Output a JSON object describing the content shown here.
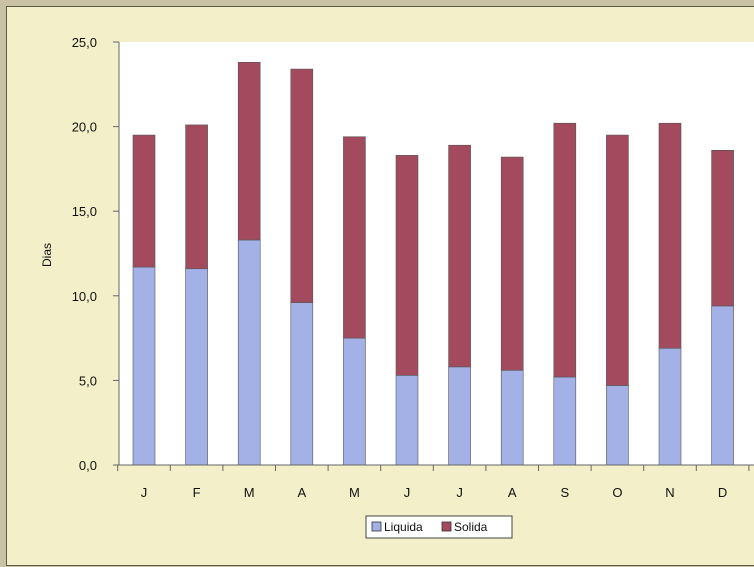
{
  "chart_data": {
    "type": "bar",
    "stacked": true,
    "categories": [
      "J",
      "F",
      "M",
      "A",
      "M",
      "J",
      "J",
      "A",
      "S",
      "O",
      "N",
      "D"
    ],
    "series": [
      {
        "name": "Liquida",
        "color": "#a3b1e6",
        "values": [
          11.7,
          11.6,
          13.3,
          9.6,
          7.5,
          5.3,
          5.8,
          5.6,
          5.2,
          4.7,
          6.9,
          9.4
        ]
      },
      {
        "name": "Solida",
        "color": "#a34a5e",
        "values": [
          7.8,
          8.5,
          10.5,
          13.8,
          11.9,
          13.0,
          13.1,
          12.6,
          15.0,
          14.8,
          13.3,
          9.2
        ]
      }
    ],
    "ylabel": "Dias",
    "ylim": [
      0,
      25
    ],
    "yticks": [
      "0,0",
      "5,0",
      "10,0",
      "15,0",
      "20,0",
      "25,0"
    ],
    "grid": false,
    "legend_position": "bottom-center"
  }
}
